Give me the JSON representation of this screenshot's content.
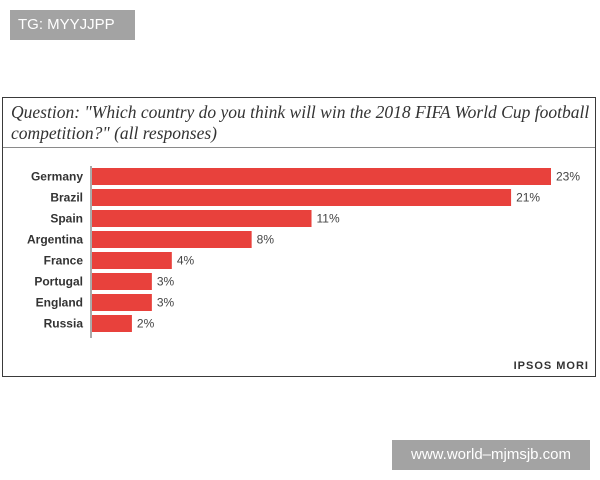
{
  "watermarks": {
    "top_left": "TG: MYYJJPP",
    "bottom_right": "www.world–mjmsjb.com"
  },
  "chart_data": {
    "type": "bar",
    "orientation": "horizontal",
    "title": "Question: \"Which country do you think will win the 2018 FIFA World Cup football competition?\" (all responses)",
    "categories": [
      "Germany",
      "Brazil",
      "Spain",
      "Argentina",
      "France",
      "Portugal",
      "England",
      "Russia"
    ],
    "values": [
      23,
      21,
      11,
      8,
      4,
      3,
      3,
      2
    ],
    "value_labels": [
      "23%",
      "21%",
      "11%",
      "8%",
      "4%",
      "3%",
      "3%",
      "2%"
    ],
    "xlabel": "",
    "ylabel": "",
    "xlim": [
      0,
      23
    ],
    "bar_color": "#e8413c",
    "source": "IPSOS MORI"
  }
}
